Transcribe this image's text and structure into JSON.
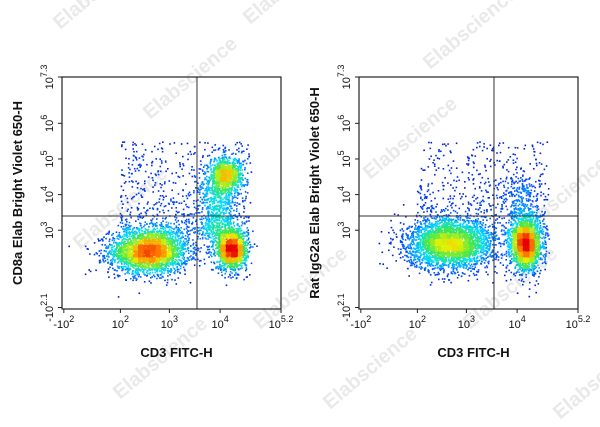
{
  "watermark": "Elabscience",
  "chart_data": [
    {
      "type": "scatter",
      "title": "",
      "xlabel": "CD3 FITC-H",
      "ylabel": "CD8a Elab Bright Violet 650-H",
      "x_scale": "biexponential",
      "y_scale": "biexponential",
      "x_ticks": [
        {
          "base": "-10",
          "exp": "2",
          "value": -100
        },
        {
          "base": "10",
          "exp": "2",
          "value": 100
        },
        {
          "base": "10",
          "exp": "3",
          "value": 1000
        },
        {
          "base": "10",
          "exp": "4",
          "value": 10000
        },
        {
          "base": "10",
          "exp": "5.2",
          "value": 158489
        }
      ],
      "y_ticks": [
        {
          "base": "-10",
          "exp": "2.1",
          "value": -126
        },
        {
          "base": "10",
          "exp": "3",
          "value": 1000
        },
        {
          "base": "10",
          "exp": "4",
          "value": 10000
        },
        {
          "base": "10",
          "exp": "5",
          "value": 100000
        },
        {
          "base": "10",
          "exp": "6",
          "value": 1000000
        },
        {
          "base": "10",
          "exp": "7.3",
          "value": 19952623
        }
      ],
      "gate": {
        "x": 3500,
        "y": 2500
      },
      "populations": [
        {
          "name": "",
          "x_center": 400,
          "y_center": 250,
          "density": "high",
          "relative_size": 0.5
        },
        {
          "name": "",
          "x_center": 13000,
          "y_center": 35000,
          "density": "high",
          "relative_size": 0.15
        },
        {
          "name": "",
          "x_center": 17000,
          "y_center": 280,
          "density": "high",
          "relative_size": 0.25
        }
      ],
      "grid": false
    },
    {
      "type": "scatter",
      "title": "",
      "xlabel": "CD3 FITC-H",
      "ylabel": "Rat IgG2a Elab Bright Violet 650-H",
      "x_scale": "biexponential",
      "y_scale": "biexponential",
      "x_ticks": [
        {
          "base": "-10",
          "exp": "2",
          "value": -100
        },
        {
          "base": "10",
          "exp": "2",
          "value": 100
        },
        {
          "base": "10",
          "exp": "3",
          "value": 1000
        },
        {
          "base": "10",
          "exp": "4",
          "value": 10000
        },
        {
          "base": "10",
          "exp": "5.2",
          "value": 158489
        }
      ],
      "y_ticks": [
        {
          "base": "-10",
          "exp": "2.1",
          "value": -126
        },
        {
          "base": "10",
          "exp": "3",
          "value": 1000
        },
        {
          "base": "10",
          "exp": "4",
          "value": 10000
        },
        {
          "base": "10",
          "exp": "5",
          "value": 100000
        },
        {
          "base": "10",
          "exp": "6",
          "value": 1000000
        },
        {
          "base": "10",
          "exp": "7.3",
          "value": 19952623
        }
      ],
      "gate": {
        "x": 3500,
        "y": 2500
      },
      "populations": [
        {
          "name": "",
          "x_center": 500,
          "y_center": 400,
          "density": "high",
          "relative_size": 0.55
        },
        {
          "name": "",
          "x_center": 15000,
          "y_center": 400,
          "density": "high",
          "relative_size": 0.4
        }
      ],
      "grid": false
    }
  ]
}
